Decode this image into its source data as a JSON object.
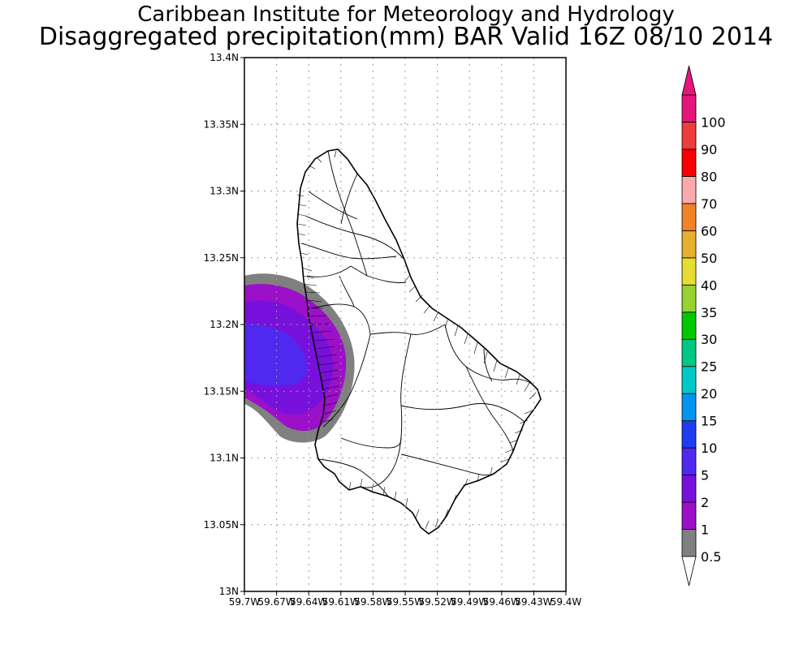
{
  "header": {
    "institute": "Caribbean Institute for Meteorology and Hydrology",
    "product": "Disaggregated precipitation(mm) BAR Valid 16Z 08/10 2014"
  },
  "map": {
    "region": "Barbados",
    "lon_range": [
      -59.7,
      -59.4
    ],
    "lat_range": [
      13.0,
      13.4
    ],
    "grid": true,
    "lat_labels": [
      "13N",
      "13.05N",
      "13.1N",
      "13.15N",
      "13.2N",
      "13.25N",
      "13.3N",
      "13.35N",
      "13.4N"
    ],
    "lon_labels": [
      "59.7W",
      "59.67W",
      "59.64W",
      "59.61W",
      "59.58W",
      "59.55W",
      "59.52W",
      "59.49W",
      "59.46W",
      "59.43W",
      "59.4W"
    ]
  },
  "colorbar": {
    "placement": "right",
    "levels": [
      "0.5",
      "1",
      "2",
      "5",
      "10",
      "15",
      "20",
      "25",
      "30",
      "35",
      "40",
      "50",
      "60",
      "70",
      "80",
      "90",
      "100"
    ],
    "colors": [
      "#808080",
      "#9b10c8",
      "#7810dc",
      "#5028f0",
      "#1e3cf0",
      "#0096f0",
      "#00c8c8",
      "#00c882",
      "#00c800",
      "#96d232",
      "#e6dc32",
      "#e6af2d",
      "#f08228",
      "#faaaaa",
      "#fa0000",
      "#f03c3c",
      "#e6147d"
    ],
    "under_color": "#ffffff",
    "over_color": "#e6147d"
  }
}
